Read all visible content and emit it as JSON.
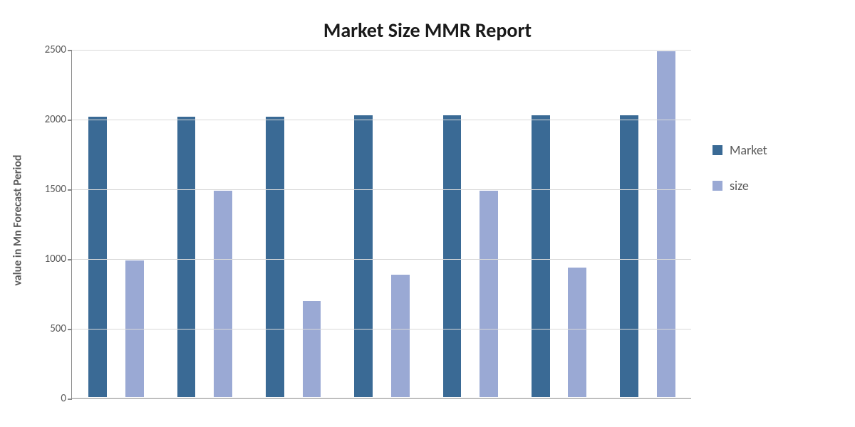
{
  "chart": {
    "type": "bar",
    "title": "Market Size MMR Report",
    "title_fontsize": 28,
    "title_fontweight": "bold",
    "title_color": "#1a1a1a",
    "ylabel": "value in Mn  Forecast  Period",
    "ylabel_fontsize": 16,
    "ylabel_color": "#595959",
    "background_color": "#ffffff",
    "grid_color": "#d9d9d9",
    "axis_color": "#888888",
    "ylim": [
      0,
      2500
    ],
    "ytick_step": 500,
    "yticks": [
      0,
      500,
      1000,
      1500,
      2000,
      2500
    ],
    "series": [
      {
        "name": "Market",
        "color": "#3a6a95",
        "values": [
          2020,
          2020,
          2020,
          2030,
          2030,
          2030,
          2030
        ]
      },
      {
        "name": "size",
        "color": "#9aa9d4",
        "values": [
          990,
          1490,
          700,
          890,
          1490,
          940,
          2490
        ]
      }
    ],
    "n_groups": 7,
    "bar_width_rel": 0.35,
    "group_padding_rel": 0.18,
    "tick_label_fontsize": 15,
    "tick_label_color": "#595959",
    "legend": {
      "position": "right",
      "font_size": 18,
      "swatch_size": 14,
      "items": [
        {
          "label": "Market",
          "color": "#3a6a95"
        },
        {
          "label": "size",
          "color": "#9aa9d4"
        }
      ]
    }
  }
}
